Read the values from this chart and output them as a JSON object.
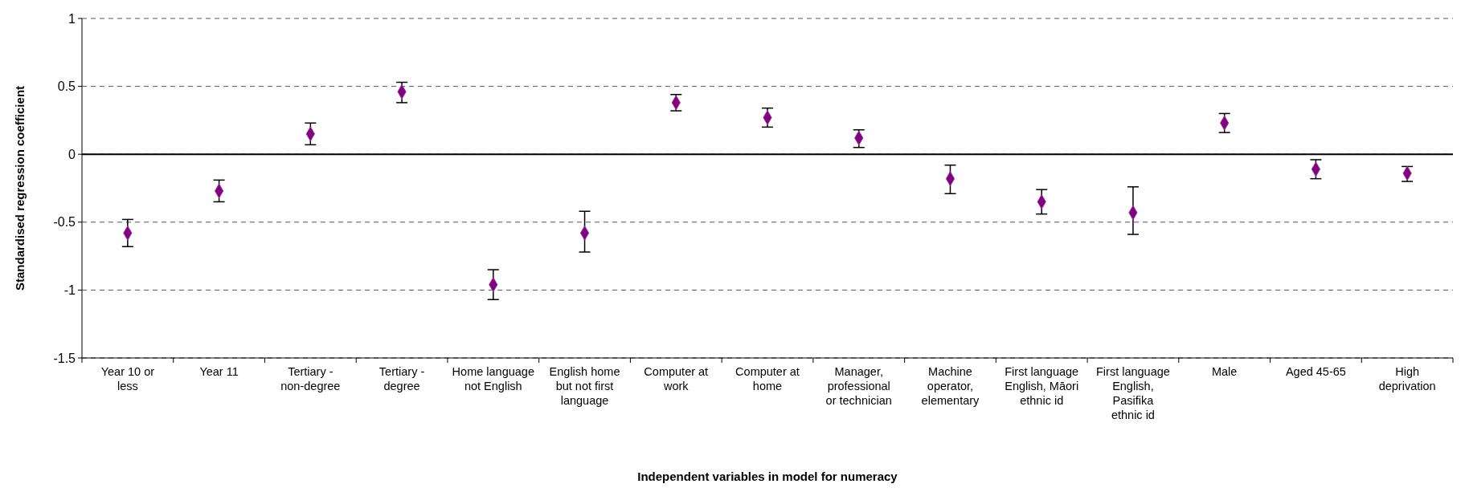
{
  "chart_data": {
    "type": "scatter",
    "xlabel": "Independent variables in model for numeracy",
    "ylabel": "Standardised regression coefficient",
    "categories": [
      "Year 10 or less",
      "Year 11",
      "Tertiary - non-degree",
      "Tertiary - degree",
      "Home language not English",
      "English home but not first language",
      "Computer at work",
      "Computer at home",
      "Manager, professional or technician",
      "Machine operator, elementary",
      "First language English, Māori ethnic id",
      "First language English, Pasifika ethnic id",
      "Male",
      "Aged 45-65",
      "High deprivation"
    ],
    "values": [
      -0.58,
      -0.27,
      0.15,
      0.46,
      -0.96,
      -0.58,
      0.38,
      0.27,
      0.12,
      -0.18,
      -0.35,
      -0.43,
      0.23,
      -0.11,
      -0.14
    ],
    "errors": [
      [
        -0.68,
        -0.48
      ],
      [
        -0.35,
        -0.19
      ],
      [
        0.07,
        0.23
      ],
      [
        0.38,
        0.53
      ],
      [
        -1.07,
        -0.85
      ],
      [
        -0.72,
        -0.42
      ],
      [
        0.32,
        0.44
      ],
      [
        0.2,
        0.34
      ],
      [
        0.05,
        0.18
      ],
      [
        -0.29,
        -0.08
      ],
      [
        -0.44,
        -0.26
      ],
      [
        -0.59,
        -0.24
      ],
      [
        0.16,
        0.3
      ],
      [
        -0.18,
        -0.04
      ],
      [
        -0.2,
        -0.09
      ]
    ],
    "color": "#800080",
    "marker": "diamond",
    "ylim": [
      -1.5,
      1
    ],
    "yticks": [
      -1.5,
      -1,
      -0.5,
      0,
      0.5,
      1
    ],
    "grid": "y",
    "ref_lines": [
      {
        "axis": "y",
        "value": 0,
        "color": "#000000",
        "line_style": "solid"
      }
    ]
  }
}
